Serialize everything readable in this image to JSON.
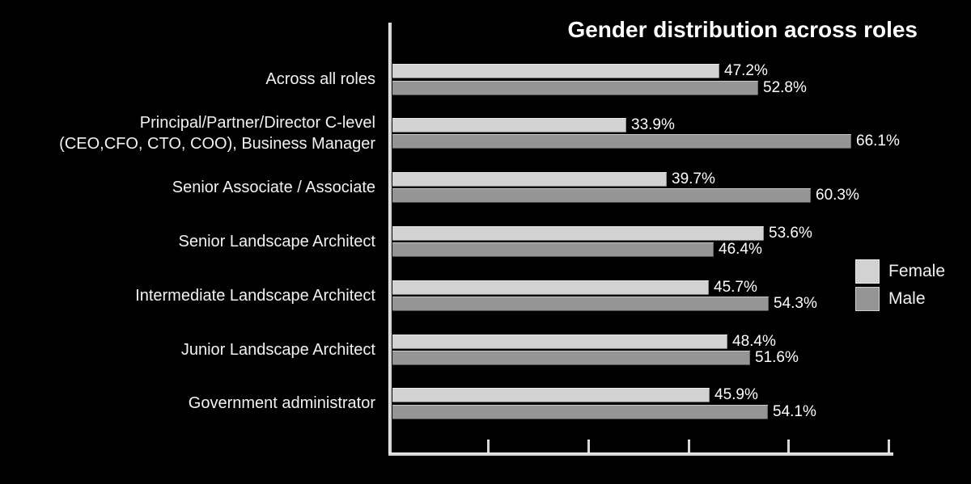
{
  "chart_data": {
    "type": "bar",
    "orientation": "horizontal",
    "title": "Gender distribution across roles",
    "categories": [
      "Across all roles",
      "Principal/Partner/Director C-level (CEO,CFO, CTO, COO), Business Manager",
      "Senior Associate / Associate",
      "Senior Landscape Architect",
      "Intermediate Landscape Architect",
      "Junior Landscape Architect",
      "Government administrator"
    ],
    "categories_display": [
      [
        "Across all roles"
      ],
      [
        "Principal/Partner/Director C-level",
        "(CEO,CFO, CTO, COO), Business Manager"
      ],
      [
        "Senior Associate / Associate"
      ],
      [
        "Senior Landscape Architect"
      ],
      [
        "Intermediate Landscape Architect"
      ],
      [
        "Junior Landscape Architect"
      ],
      [
        "Government administrator"
      ]
    ],
    "series": [
      {
        "name": "Female",
        "color": "#d2d2d2",
        "values": [
          47.2,
          33.9,
          39.7,
          53.6,
          45.7,
          48.4,
          45.9
        ],
        "labels": [
          "47.2%",
          "33.9%",
          "39.7%",
          "53.6%",
          "45.7%",
          "48.4%",
          "45.9%"
        ]
      },
      {
        "name": "Male",
        "color": "#959595",
        "values": [
          52.8,
          66.1,
          60.3,
          46.4,
          54.3,
          51.6,
          54.1
        ],
        "labels": [
          "52.8%",
          "66.1%",
          "60.3%",
          "46.4%",
          "54.3%",
          "51.6%",
          "54.1%"
        ]
      }
    ],
    "x_axis": {
      "unit": "percent",
      "line_extent_percent": 71.6,
      "ticks_percent": [
        14.3,
        28.6,
        42.9,
        57.1,
        71.4
      ],
      "tick_labels": [],
      "labels_shown": false
    },
    "grid": false,
    "legend_position": "center-right",
    "value_labels_shown": true,
    "colors": {
      "background": "#000000",
      "axis": "#d6d6d6",
      "category_text": "#f2f2f2",
      "value_text": "#ffffff",
      "title_text": "#ffffff"
    }
  }
}
